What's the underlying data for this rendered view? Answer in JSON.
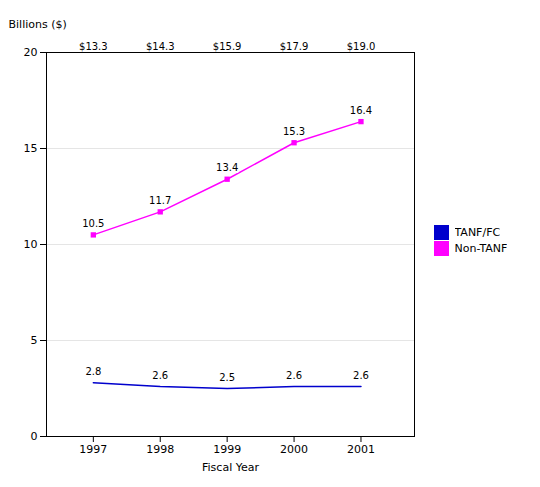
{
  "chart_data": {
    "type": "line",
    "xlabel": "Fiscal Year",
    "ylabel": "Billions ($)",
    "x": [
      1997,
      1998,
      1999,
      2000,
      2001
    ],
    "series": [
      {
        "name": "TANF/FC",
        "color": "#0000CD",
        "marker": "none",
        "values": [
          2.8,
          2.6,
          2.5,
          2.6,
          2.6
        ]
      },
      {
        "name": "Non-TANF",
        "color": "#FF00FF",
        "marker": "square",
        "values": [
          10.5,
          11.7,
          13.4,
          15.3,
          16.4
        ]
      }
    ],
    "xlim": [
      1996.3,
      2001.8
    ],
    "xticks": [
      1997,
      1998,
      1999,
      2000,
      2001
    ],
    "ylim": [
      0,
      20
    ],
    "yticks": [
      0,
      5,
      10,
      15,
      20
    ],
    "grid": true,
    "legend": "right",
    "data_labels": true,
    "annotations": [
      {
        "x": 1997,
        "text": "$13.3"
      },
      {
        "x": 1998,
        "text": "$14.3"
      },
      {
        "x": 1999,
        "text": "$15.9"
      },
      {
        "x": 2000,
        "text": "$17.9"
      },
      {
        "x": 2001,
        "text": "$19.0"
      }
    ]
  }
}
